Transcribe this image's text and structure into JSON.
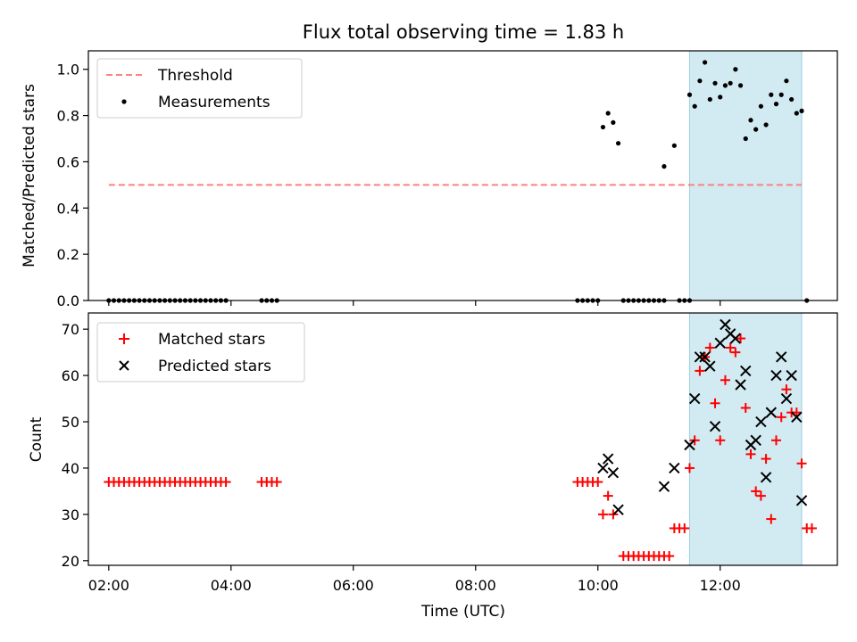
{
  "title": "Flux total observing time = 1.83 h",
  "chart_data": [
    {
      "type": "scatter",
      "ylabel": "Matched/Predicted stars",
      "ylim": [
        0,
        1.08
      ],
      "xlim": [
        "01:40",
        "13:55"
      ],
      "yticks": [
        "0.0",
        "0.2",
        "0.4",
        "0.6",
        "0.8",
        "1.0"
      ],
      "legend_position": "top-left",
      "shaded_interval": {
        "start": "11:30",
        "end": "13:20",
        "color": "#add8e6"
      },
      "threshold": {
        "name": "Threshold",
        "value": 0.5,
        "start": "02:00",
        "end": "13:20",
        "color": "#ff7f7f",
        "style": "dashed"
      },
      "series": [
        {
          "name": "Measurements",
          "marker": "dot",
          "color": "#000000",
          "points": [
            [
              "02:00",
              0
            ],
            [
              "02:05",
              0
            ],
            [
              "02:10",
              0
            ],
            [
              "02:15",
              0
            ],
            [
              "02:20",
              0
            ],
            [
              "02:25",
              0
            ],
            [
              "02:30",
              0
            ],
            [
              "02:35",
              0
            ],
            [
              "02:40",
              0
            ],
            [
              "02:45",
              0
            ],
            [
              "02:50",
              0
            ],
            [
              "02:55",
              0
            ],
            [
              "03:00",
              0
            ],
            [
              "03:05",
              0
            ],
            [
              "03:10",
              0
            ],
            [
              "03:15",
              0
            ],
            [
              "03:20",
              0
            ],
            [
              "03:25",
              0
            ],
            [
              "03:30",
              0
            ],
            [
              "03:35",
              0
            ],
            [
              "03:40",
              0
            ],
            [
              "03:45",
              0
            ],
            [
              "03:50",
              0
            ],
            [
              "03:55",
              0
            ],
            [
              "04:30",
              0
            ],
            [
              "04:35",
              0
            ],
            [
              "04:40",
              0
            ],
            [
              "04:45",
              0
            ],
            [
              "09:40",
              0
            ],
            [
              "09:45",
              0
            ],
            [
              "09:50",
              0
            ],
            [
              "09:55",
              0
            ],
            [
              "10:00",
              0
            ],
            [
              "10:05",
              0.75
            ],
            [
              "10:10",
              0.81
            ],
            [
              "10:15",
              0.77
            ],
            [
              "10:20",
              0.68
            ],
            [
              "10:25",
              0
            ],
            [
              "10:30",
              0
            ],
            [
              "10:35",
              0
            ],
            [
              "10:40",
              0
            ],
            [
              "10:45",
              0
            ],
            [
              "10:50",
              0
            ],
            [
              "10:55",
              0
            ],
            [
              "11:00",
              0
            ],
            [
              "11:05",
              0
            ],
            [
              "11:05",
              0.58
            ],
            [
              "11:15",
              0.67
            ],
            [
              "11:20",
              0
            ],
            [
              "11:25",
              0
            ],
            [
              "11:30",
              0
            ],
            [
              "11:30",
              0.89
            ],
            [
              "11:35",
              0.84
            ],
            [
              "11:40",
              0.95
            ],
            [
              "11:45",
              1.03
            ],
            [
              "11:50",
              0.87
            ],
            [
              "11:55",
              0.94
            ],
            [
              "12:00",
              0.88
            ],
            [
              "12:05",
              0.93
            ],
            [
              "12:10",
              0.94
            ],
            [
              "12:15",
              1.0
            ],
            [
              "12:20",
              0.93
            ],
            [
              "12:25",
              0.7
            ],
            [
              "12:30",
              0.78
            ],
            [
              "12:35",
              0.74
            ],
            [
              "12:40",
              0.84
            ],
            [
              "12:45",
              0.76
            ],
            [
              "12:50",
              0.89
            ],
            [
              "12:55",
              0.85
            ],
            [
              "13:00",
              0.89
            ],
            [
              "13:05",
              0.95
            ],
            [
              "13:10",
              0.87
            ],
            [
              "13:15",
              0.81
            ],
            [
              "13:20",
              0.82
            ],
            [
              "13:25",
              0
            ]
          ]
        }
      ]
    },
    {
      "type": "scatter",
      "xlabel": "Time (UTC)",
      "ylabel": "Count",
      "ylim": [
        19,
        73.5
      ],
      "xlim": [
        "01:40",
        "13:55"
      ],
      "xticks": [
        "02:00",
        "04:00",
        "06:00",
        "08:00",
        "10:00",
        "12:00"
      ],
      "yticks": [
        "20",
        "30",
        "40",
        "50",
        "60",
        "70"
      ],
      "legend_position": "top-left",
      "shaded_interval": {
        "start": "11:30",
        "end": "13:20",
        "color": "#add8e6"
      },
      "series": [
        {
          "name": "Matched stars",
          "marker": "plus",
          "color": "#ff0000",
          "points": [
            [
              "02:00",
              37
            ],
            [
              "02:05",
              37
            ],
            [
              "02:10",
              37
            ],
            [
              "02:15",
              37
            ],
            [
              "02:20",
              37
            ],
            [
              "02:25",
              37
            ],
            [
              "02:30",
              37
            ],
            [
              "02:35",
              37
            ],
            [
              "02:40",
              37
            ],
            [
              "02:45",
              37
            ],
            [
              "02:50",
              37
            ],
            [
              "02:55",
              37
            ],
            [
              "03:00",
              37
            ],
            [
              "03:05",
              37
            ],
            [
              "03:10",
              37
            ],
            [
              "03:15",
              37
            ],
            [
              "03:20",
              37
            ],
            [
              "03:25",
              37
            ],
            [
              "03:30",
              37
            ],
            [
              "03:35",
              37
            ],
            [
              "03:40",
              37
            ],
            [
              "03:45",
              37
            ],
            [
              "03:50",
              37
            ],
            [
              "03:55",
              37
            ],
            [
              "04:30",
              37
            ],
            [
              "04:35",
              37
            ],
            [
              "04:40",
              37
            ],
            [
              "04:45",
              37
            ],
            [
              "09:40",
              37
            ],
            [
              "09:45",
              37
            ],
            [
              "09:50",
              37
            ],
            [
              "09:55",
              37
            ],
            [
              "10:00",
              37
            ],
            [
              "10:05",
              30
            ],
            [
              "10:10",
              34
            ],
            [
              "10:15",
              30
            ],
            [
              "10:25",
              21
            ],
            [
              "10:30",
              21
            ],
            [
              "10:35",
              21
            ],
            [
              "10:40",
              21
            ],
            [
              "10:45",
              21
            ],
            [
              "10:50",
              21
            ],
            [
              "10:55",
              21
            ],
            [
              "11:00",
              21
            ],
            [
              "11:05",
              21
            ],
            [
              "11:10",
              21
            ],
            [
              "11:15",
              27
            ],
            [
              "11:20",
              27
            ],
            [
              "11:25",
              27
            ],
            [
              "11:30",
              40
            ],
            [
              "11:35",
              46
            ],
            [
              "11:40",
              61
            ],
            [
              "11:45",
              64
            ],
            [
              "11:50",
              66
            ],
            [
              "11:55",
              54
            ],
            [
              "12:00",
              46
            ],
            [
              "12:05",
              59
            ],
            [
              "12:10",
              66
            ],
            [
              "12:15",
              65
            ],
            [
              "12:20",
              68
            ],
            [
              "12:25",
              53
            ],
            [
              "12:30",
              43
            ],
            [
              "12:35",
              35
            ],
            [
              "12:40",
              34
            ],
            [
              "12:45",
              42
            ],
            [
              "12:50",
              29
            ],
            [
              "12:55",
              46
            ],
            [
              "13:00",
              51
            ],
            [
              "13:05",
              57
            ],
            [
              "13:10",
              52
            ],
            [
              "13:15",
              52
            ],
            [
              "13:20",
              41
            ],
            [
              "13:25",
              27
            ],
            [
              "13:30",
              27
            ]
          ]
        },
        {
          "name": "Predicted stars",
          "marker": "x",
          "color": "#000000",
          "points": [
            [
              "10:05",
              40
            ],
            [
              "10:10",
              42
            ],
            [
              "10:15",
              39
            ],
            [
              "10:20",
              31
            ],
            [
              "11:05",
              36
            ],
            [
              "11:15",
              40
            ],
            [
              "11:30",
              45
            ],
            [
              "11:35",
              55
            ],
            [
              "11:40",
              64
            ],
            [
              "11:45",
              64
            ],
            [
              "11:50",
              62
            ],
            [
              "11:55",
              49
            ],
            [
              "12:00",
              67
            ],
            [
              "12:05",
              71
            ],
            [
              "12:10",
              69
            ],
            [
              "12:15",
              68
            ],
            [
              "12:20",
              58
            ],
            [
              "12:25",
              61
            ],
            [
              "12:30",
              45
            ],
            [
              "12:35",
              46
            ],
            [
              "12:40",
              50
            ],
            [
              "12:45",
              38
            ],
            [
              "12:50",
              52
            ],
            [
              "12:55",
              60
            ],
            [
              "13:00",
              64
            ],
            [
              "13:05",
              55
            ],
            [
              "13:10",
              60
            ],
            [
              "13:15",
              51
            ],
            [
              "13:20",
              33
            ]
          ]
        }
      ]
    }
  ]
}
